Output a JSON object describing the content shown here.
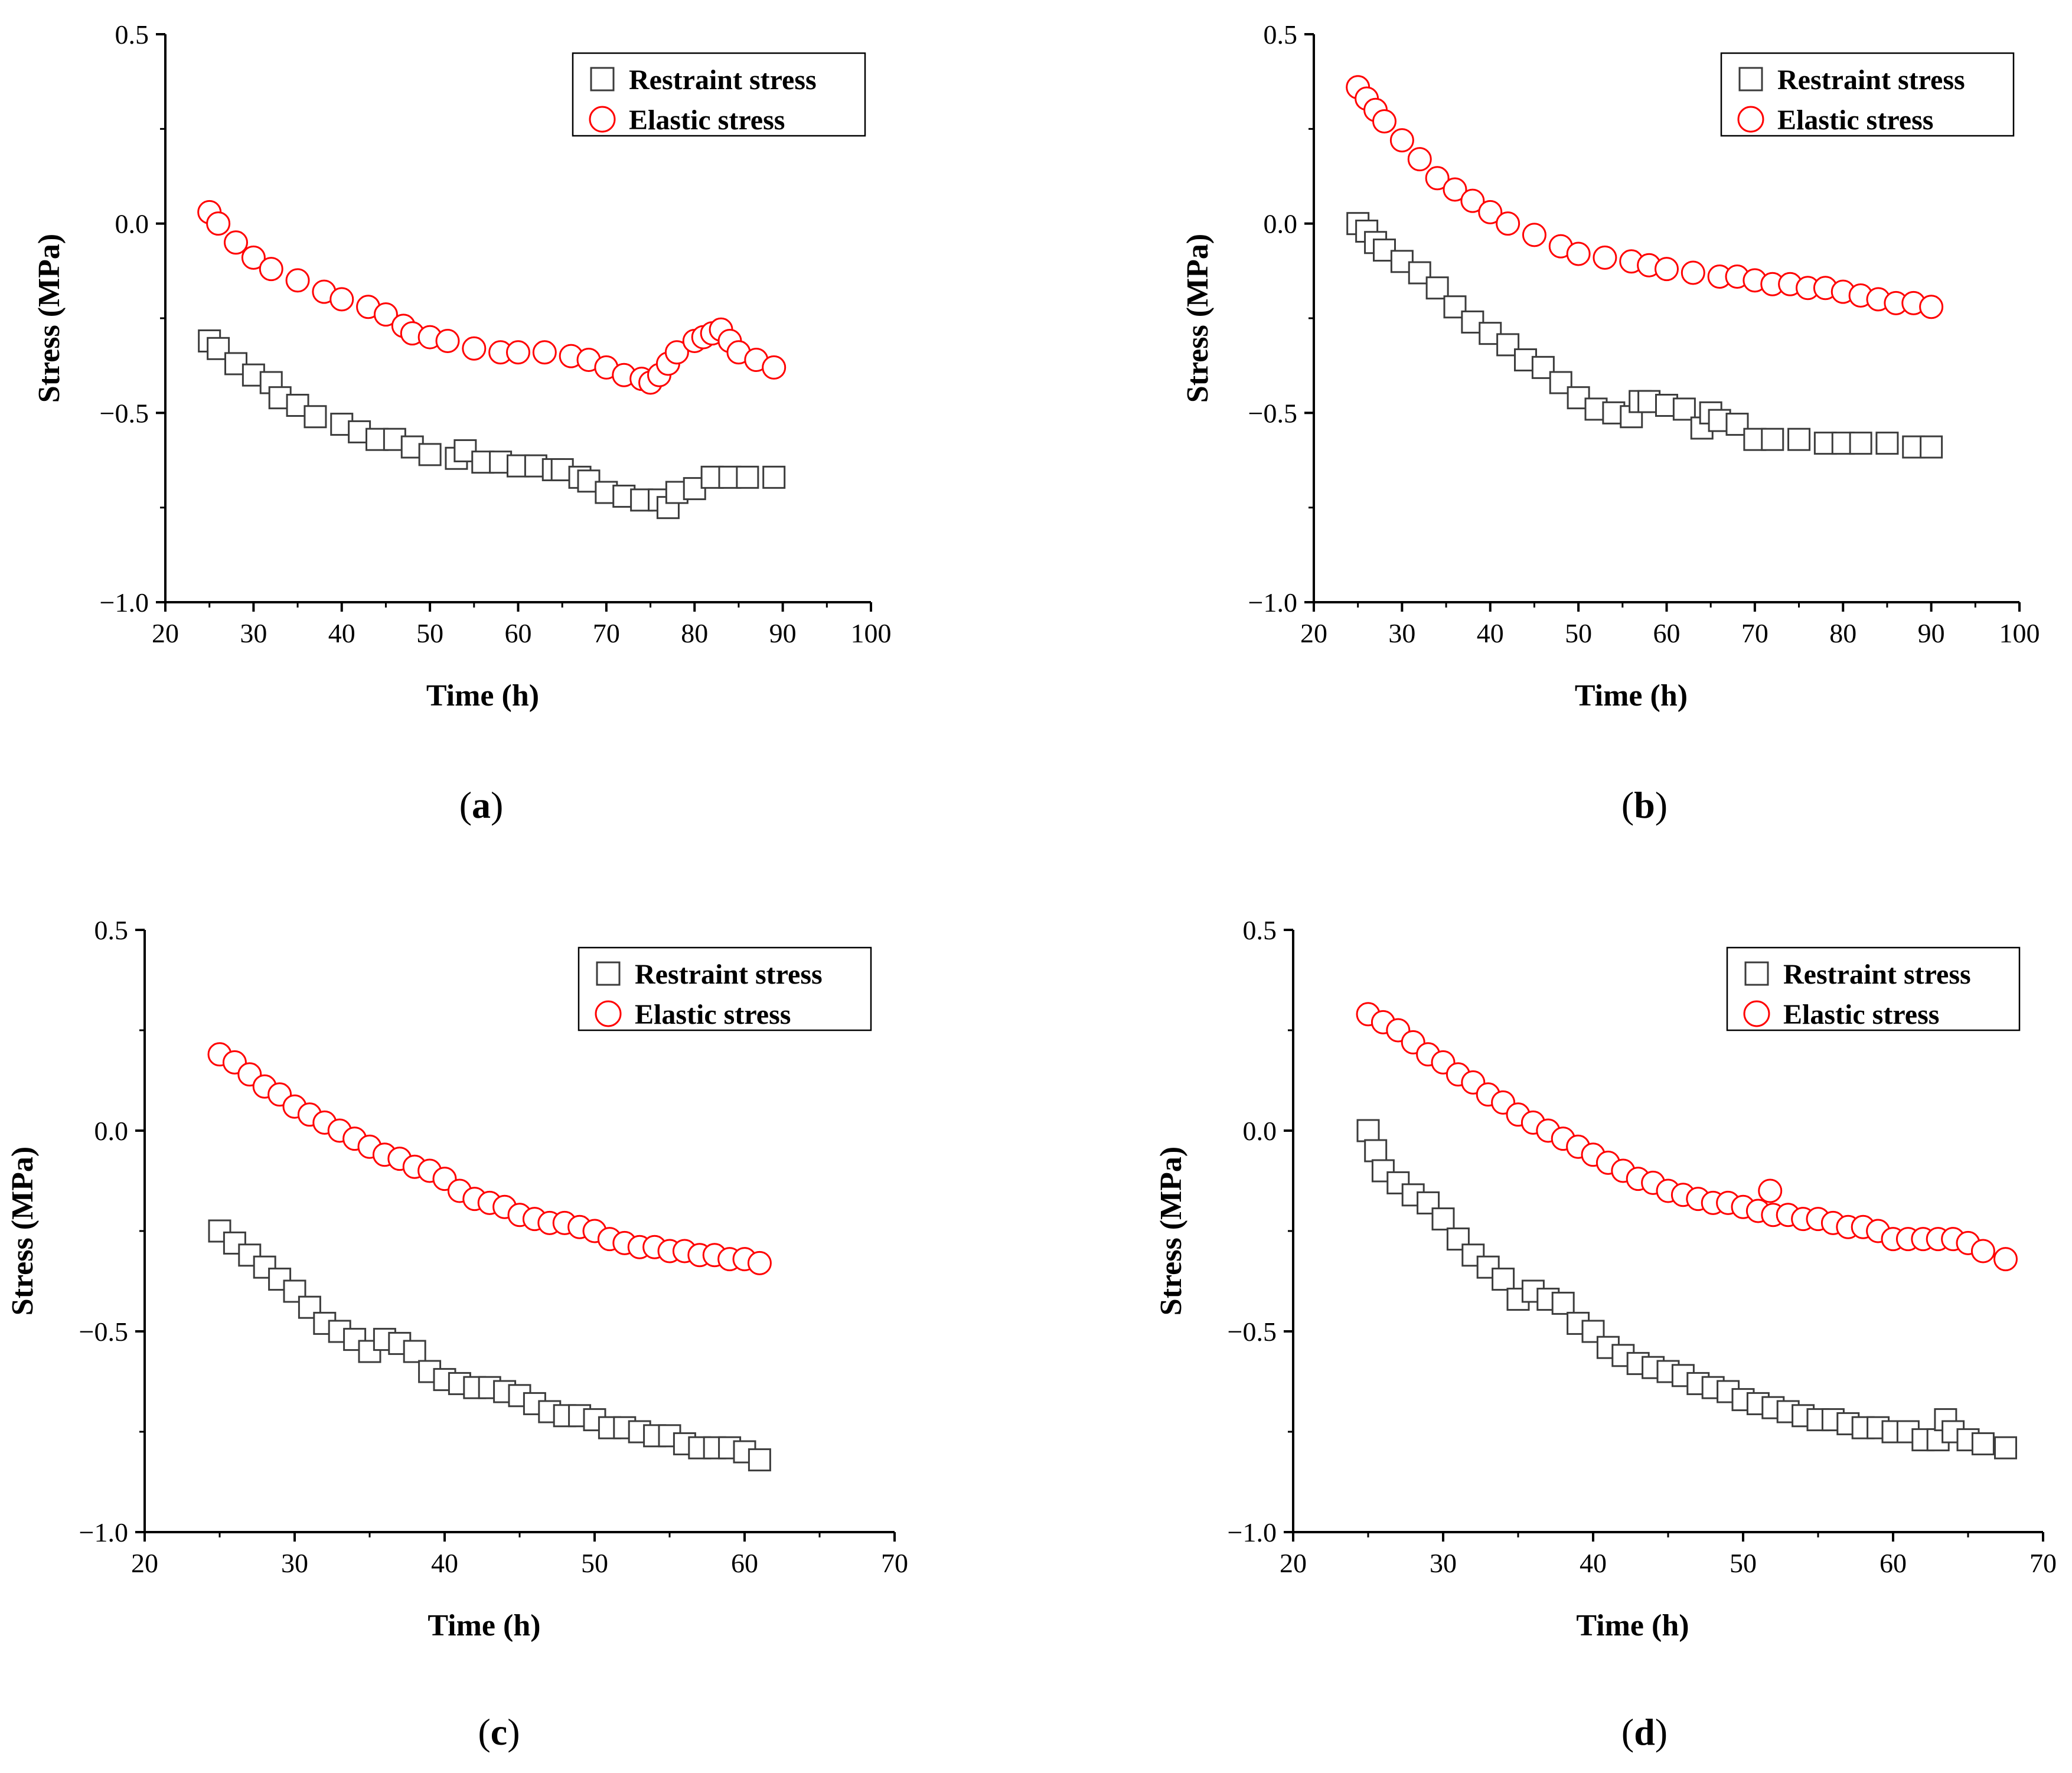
{
  "chart_data": [
    {
      "type": "scatter",
      "panel_label": "a",
      "xlabel": "Time (h)",
      "ylabel": "Stress (MPa)",
      "xlim": [
        20,
        100
      ],
      "ylim": [
        -1.0,
        0.5
      ],
      "xticks": [
        "20",
        "30",
        "40",
        "50",
        "60",
        "70",
        "80",
        "90",
        "100"
      ],
      "yticks": [
        "−1.0",
        "−0.5",
        "0.0",
        "0.5"
      ],
      "legend_position": "top-right",
      "series": [
        {
          "name": "Restraint stress",
          "marker": "square",
          "color": "#3c3c3c",
          "x": [
            25,
            26,
            28,
            30,
            32,
            33,
            35,
            37,
            40,
            42,
            44,
            46,
            48,
            50,
            53,
            54,
            56,
            58,
            60,
            62,
            64,
            65,
            67,
            68,
            70,
            72,
            74,
            76,
            77,
            78,
            80,
            82,
            84,
            86,
            89
          ],
          "y": [
            -0.31,
            -0.33,
            -0.37,
            -0.4,
            -0.42,
            -0.46,
            -0.48,
            -0.51,
            -0.53,
            -0.55,
            -0.57,
            -0.57,
            -0.59,
            -0.61,
            -0.62,
            -0.6,
            -0.63,
            -0.63,
            -0.64,
            -0.64,
            -0.65,
            -0.65,
            -0.67,
            -0.68,
            -0.71,
            -0.72,
            -0.73,
            -0.73,
            -0.75,
            -0.71,
            -0.7,
            -0.67,
            -0.67,
            -0.67,
            -0.67
          ]
        },
        {
          "name": "Elastic stress",
          "marker": "circle",
          "color": "#ff0000",
          "x": [
            25,
            26,
            28,
            30,
            32,
            35,
            38,
            40,
            43,
            45,
            47,
            48,
            50,
            52,
            55,
            58,
            60,
            63,
            66,
            68,
            70,
            72,
            74,
            75,
            76,
            77,
            78,
            80,
            81,
            82,
            83,
            84,
            85,
            87,
            89
          ],
          "y": [
            0.03,
            0.0,
            -0.05,
            -0.09,
            -0.12,
            -0.15,
            -0.18,
            -0.2,
            -0.22,
            -0.24,
            -0.27,
            -0.29,
            -0.3,
            -0.31,
            -0.33,
            -0.34,
            -0.34,
            -0.34,
            -0.35,
            -0.36,
            -0.38,
            -0.4,
            -0.41,
            -0.42,
            -0.4,
            -0.37,
            -0.34,
            -0.31,
            -0.3,
            -0.29,
            -0.28,
            -0.31,
            -0.34,
            -0.36,
            -0.38
          ]
        }
      ]
    },
    {
      "type": "scatter",
      "panel_label": "b",
      "xlabel": "Time (h)",
      "ylabel": "Stress (MPa)",
      "xlim": [
        20,
        100
      ],
      "ylim": [
        -1.0,
        0.5
      ],
      "xticks": [
        "20",
        "30",
        "40",
        "50",
        "60",
        "70",
        "80",
        "90",
        "100"
      ],
      "yticks": [
        "−1.0",
        "−0.5",
        "0.0",
        "0.5"
      ],
      "legend_position": "top-right",
      "series": [
        {
          "name": "Restraint stress",
          "marker": "square",
          "color": "#3c3c3c",
          "x": [
            25,
            26,
            27,
            28,
            30,
            32,
            34,
            36,
            38,
            40,
            42,
            44,
            46,
            48,
            50,
            52,
            54,
            56,
            57,
            58,
            60,
            62,
            64,
            65,
            66,
            68,
            70,
            72,
            75,
            78,
            80,
            82,
            85,
            88,
            90
          ],
          "y": [
            0.0,
            -0.02,
            -0.05,
            -0.07,
            -0.1,
            -0.13,
            -0.17,
            -0.22,
            -0.26,
            -0.29,
            -0.32,
            -0.36,
            -0.38,
            -0.42,
            -0.46,
            -0.49,
            -0.5,
            -0.51,
            -0.47,
            -0.47,
            -0.48,
            -0.49,
            -0.54,
            -0.5,
            -0.52,
            -0.53,
            -0.57,
            -0.57,
            -0.57,
            -0.58,
            -0.58,
            -0.58,
            -0.58,
            -0.59,
            -0.59
          ]
        },
        {
          "name": "Elastic stress",
          "marker": "circle",
          "color": "#ff0000",
          "x": [
            25,
            26,
            27,
            28,
            30,
            32,
            34,
            36,
            38,
            40,
            42,
            45,
            48,
            50,
            53,
            56,
            58,
            60,
            63,
            66,
            68,
            70,
            72,
            74,
            76,
            78,
            80,
            82,
            84,
            86,
            88,
            90
          ],
          "y": [
            0.36,
            0.33,
            0.3,
            0.27,
            0.22,
            0.17,
            0.12,
            0.09,
            0.06,
            0.03,
            0.0,
            -0.03,
            -0.06,
            -0.08,
            -0.09,
            -0.1,
            -0.11,
            -0.12,
            -0.13,
            -0.14,
            -0.14,
            -0.15,
            -0.16,
            -0.16,
            -0.17,
            -0.17,
            -0.18,
            -0.19,
            -0.2,
            -0.21,
            -0.21,
            -0.22
          ]
        }
      ]
    },
    {
      "type": "scatter",
      "panel_label": "c",
      "xlabel": "Time (h)",
      "ylabel": "Stress (MPa)",
      "xlim": [
        20,
        70
      ],
      "ylim": [
        -1.0,
        0.5
      ],
      "xticks": [
        "20",
        "30",
        "40",
        "50",
        "60",
        "70"
      ],
      "yticks": [
        "−1.0",
        "−0.5",
        "0.0",
        "0.5"
      ],
      "legend_position": "top-right",
      "series": [
        {
          "name": "Restraint stress",
          "marker": "square",
          "color": "#3c3c3c",
          "x": [
            25,
            26,
            27,
            28,
            29,
            30,
            31,
            32,
            33,
            34,
            35,
            36,
            37,
            38,
            39,
            40,
            41,
            42,
            43,
            44,
            45,
            46,
            47,
            48,
            49,
            50,
            51,
            52,
            53,
            54,
            55,
            56,
            57,
            58,
            59,
            60,
            61
          ],
          "y": [
            -0.25,
            -0.28,
            -0.31,
            -0.34,
            -0.37,
            -0.4,
            -0.44,
            -0.48,
            -0.5,
            -0.52,
            -0.55,
            -0.52,
            -0.53,
            -0.55,
            -0.6,
            -0.62,
            -0.63,
            -0.64,
            -0.64,
            -0.65,
            -0.66,
            -0.68,
            -0.7,
            -0.71,
            -0.71,
            -0.72,
            -0.74,
            -0.74,
            -0.75,
            -0.76,
            -0.76,
            -0.78,
            -0.79,
            -0.79,
            -0.79,
            -0.8,
            -0.82
          ]
        },
        {
          "name": "Elastic stress",
          "marker": "circle",
          "color": "#ff0000",
          "x": [
            25,
            26,
            27,
            28,
            29,
            30,
            31,
            32,
            33,
            34,
            35,
            36,
            37,
            38,
            39,
            40,
            41,
            42,
            43,
            44,
            45,
            46,
            47,
            48,
            49,
            50,
            51,
            52,
            53,
            54,
            55,
            56,
            57,
            58,
            59,
            60,
            61
          ],
          "y": [
            0.19,
            0.17,
            0.14,
            0.11,
            0.09,
            0.06,
            0.04,
            0.02,
            0.0,
            -0.02,
            -0.04,
            -0.06,
            -0.07,
            -0.09,
            -0.1,
            -0.12,
            -0.15,
            -0.17,
            -0.18,
            -0.19,
            -0.21,
            -0.22,
            -0.23,
            -0.23,
            -0.24,
            -0.25,
            -0.27,
            -0.28,
            -0.29,
            -0.29,
            -0.3,
            -0.3,
            -0.31,
            -0.31,
            -0.32,
            -0.32,
            -0.33
          ]
        }
      ]
    },
    {
      "type": "scatter",
      "panel_label": "d",
      "xlabel": "Time (h)",
      "ylabel": "Stress (MPa)",
      "xlim": [
        20,
        70
      ],
      "ylim": [
        -1.0,
        0.5
      ],
      "xticks": [
        "20",
        "30",
        "40",
        "50",
        "60",
        "70"
      ],
      "yticks": [
        "−1.0",
        "−0.5",
        "0.0",
        "0.5"
      ],
      "legend_position": "top-right",
      "series": [
        {
          "name": "Restraint stress",
          "marker": "square",
          "color": "#3c3c3c",
          "x": [
            25,
            25.5,
            26,
            27,
            28,
            29,
            30,
            31,
            32,
            33,
            34,
            35,
            36,
            37,
            38,
            39,
            40,
            41,
            42,
            43,
            44,
            45,
            46,
            47,
            48,
            49,
            50,
            51,
            52,
            53,
            54,
            55,
            56,
            57,
            58,
            59,
            60,
            61,
            62,
            63,
            63.5,
            64,
            65,
            66,
            67.5
          ],
          "y": [
            0.0,
            -0.05,
            -0.1,
            -0.13,
            -0.16,
            -0.18,
            -0.22,
            -0.27,
            -0.31,
            -0.34,
            -0.37,
            -0.42,
            -0.4,
            -0.42,
            -0.43,
            -0.48,
            -0.5,
            -0.54,
            -0.56,
            -0.58,
            -0.59,
            -0.6,
            -0.61,
            -0.63,
            -0.64,
            -0.65,
            -0.67,
            -0.68,
            -0.69,
            -0.7,
            -0.71,
            -0.72,
            -0.72,
            -0.73,
            -0.74,
            -0.74,
            -0.75,
            -0.75,
            -0.77,
            -0.77,
            -0.72,
            -0.75,
            -0.77,
            -0.78,
            -0.79
          ]
        },
        {
          "name": "Elastic stress",
          "marker": "circle",
          "color": "#ff0000",
          "x": [
            25,
            26,
            27,
            28,
            29,
            30,
            31,
            32,
            33,
            34,
            35,
            36,
            37,
            38,
            39,
            40,
            41,
            42,
            43,
            44,
            45,
            46,
            47,
            48,
            49,
            50,
            51,
            51.8,
            52,
            53,
            54,
            55,
            56,
            57,
            58,
            59,
            60,
            61,
            62,
            63,
            64,
            65,
            66,
            67.5
          ],
          "y": [
            0.29,
            0.27,
            0.25,
            0.22,
            0.19,
            0.17,
            0.14,
            0.12,
            0.09,
            0.07,
            0.04,
            0.02,
            0.0,
            -0.02,
            -0.04,
            -0.06,
            -0.08,
            -0.1,
            -0.12,
            -0.13,
            -0.15,
            -0.16,
            -0.17,
            -0.18,
            -0.18,
            -0.19,
            -0.2,
            -0.15,
            -0.21,
            -0.21,
            -0.22,
            -0.22,
            -0.23,
            -0.24,
            -0.24,
            -0.25,
            -0.27,
            -0.27,
            -0.27,
            -0.27,
            -0.27,
            -0.28,
            -0.3,
            -0.32
          ]
        }
      ]
    }
  ]
}
